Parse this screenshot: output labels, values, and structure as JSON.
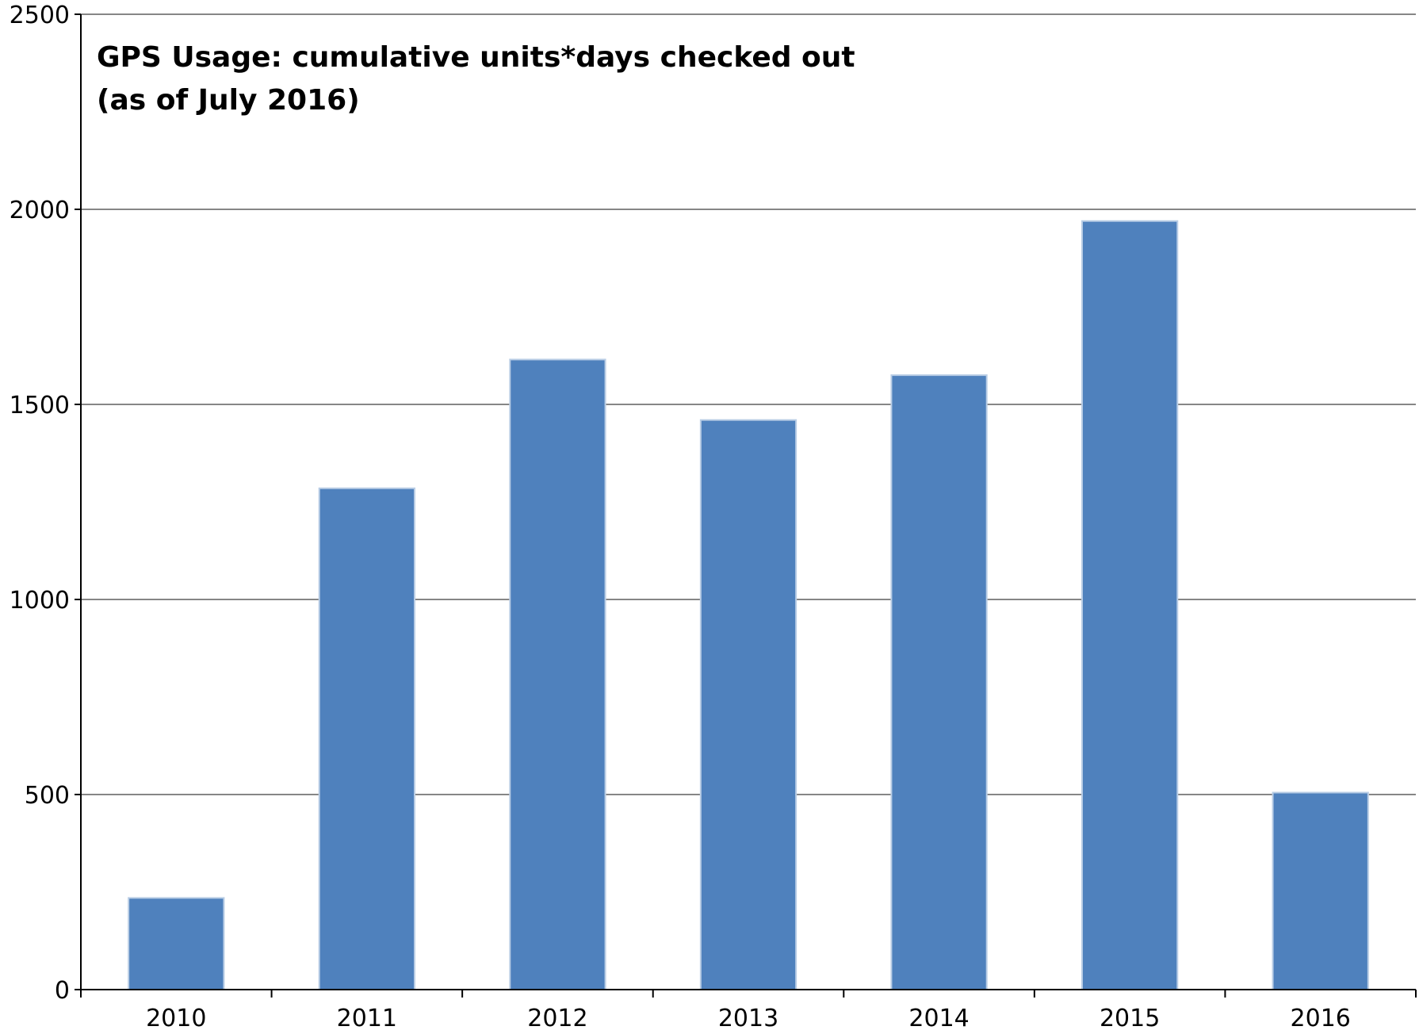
{
  "chart_data": {
    "type": "bar",
    "title_lines": [
      "GPS Usage: cumulative units*days checked out",
      "(as of July 2016)"
    ],
    "xlabel": "",
    "ylabel": "",
    "categories": [
      "2010",
      "2011",
      "2012",
      "2013",
      "2014",
      "2015",
      "2016"
    ],
    "values": [
      235,
      1285,
      1615,
      1460,
      1575,
      1970,
      505
    ],
    "ylim": [
      0,
      2500
    ],
    "yticks": [
      "0",
      "500",
      "1000",
      "1500",
      "2000",
      "2500"
    ],
    "grid": true,
    "legend": "none",
    "bar_color": "#4f81bd",
    "bar_edge_color": "#b9cde5",
    "grid_color": "#868686",
    "axis_color": "#000000"
  }
}
